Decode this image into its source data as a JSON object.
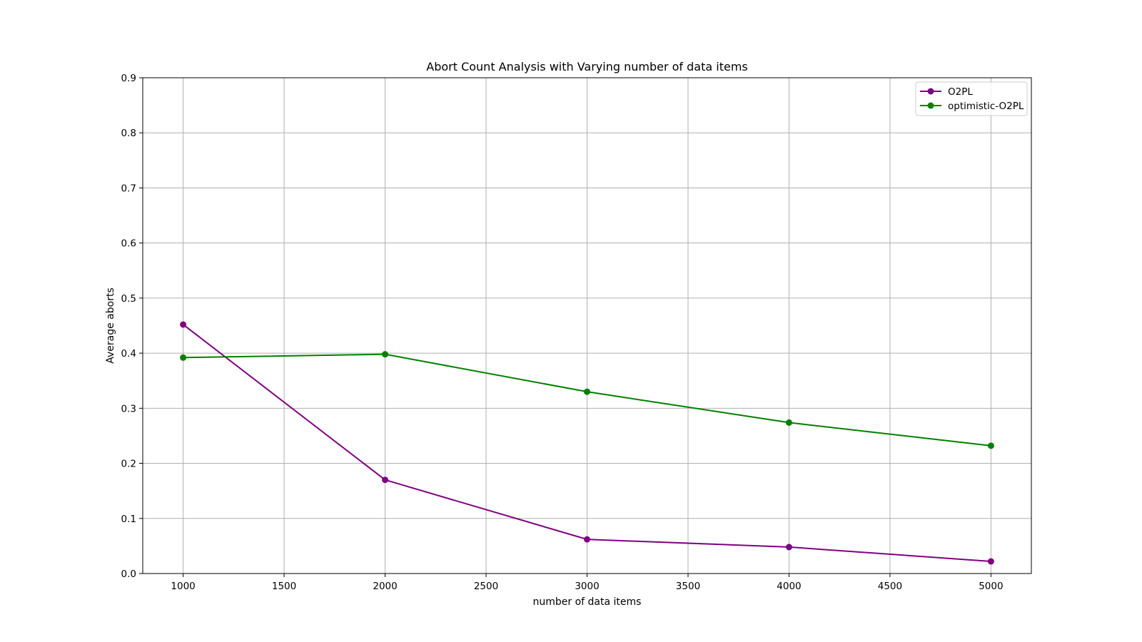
{
  "chart_data": {
    "type": "line",
    "title": "Abort Count Analysis with Varying number of data items",
    "xlabel": "number of data items",
    "ylabel": "Average aborts",
    "x": [
      1000,
      2000,
      3000,
      4000,
      5000
    ],
    "xlim": [
      800,
      5200
    ],
    "ylim": [
      0,
      0.9
    ],
    "xticks": [
      1000,
      1500,
      2000,
      2500,
      3000,
      3500,
      4000,
      4500,
      5000
    ],
    "yticks": [
      0.0,
      0.1,
      0.2,
      0.3,
      0.4,
      0.5,
      0.6,
      0.7,
      0.8,
      0.9
    ],
    "grid": true,
    "legend_position": "top-right",
    "series": [
      {
        "name": "O2PL",
        "color": "#800080",
        "marker": "circle",
        "values": [
          0.452,
          0.17,
          0.062,
          0.048,
          0.022
        ]
      },
      {
        "name": "optimistic-O2PL",
        "color": "#008000",
        "marker": "circle",
        "values": [
          0.392,
          0.398,
          0.33,
          0.274,
          0.232
        ]
      }
    ]
  }
}
